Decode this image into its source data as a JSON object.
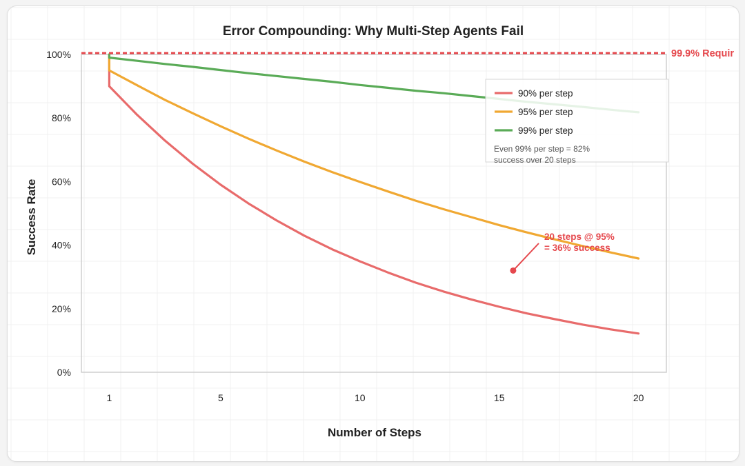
{
  "chart_data": {
    "type": "line",
    "title": "Error Compounding: Why Multi-Step Agents Fail",
    "xlabel": "Number of Steps",
    "ylabel": "Success Rate",
    "xlim": [
      0,
      21
    ],
    "ylim": [
      0,
      100
    ],
    "x_ticks": [
      1,
      5,
      10,
      15,
      20
    ],
    "y_ticks": [
      0,
      20,
      40,
      60,
      80,
      100
    ],
    "y_tick_labels": [
      "0%",
      "20%",
      "40%",
      "60%",
      "80%",
      "100%"
    ],
    "grid": true,
    "legend_position": "top-right",
    "x": [
      1,
      2,
      3,
      4,
      5,
      6,
      7,
      8,
      9,
      10,
      11,
      12,
      13,
      14,
      15,
      16,
      17,
      18,
      19,
      20
    ],
    "series": [
      {
        "name": "90% per step",
        "color": "#e86b6b",
        "values": [
          90,
          81,
          72.9,
          65.6,
          59.0,
          53.1,
          47.8,
          43.0,
          38.7,
          34.9,
          31.4,
          28.2,
          25.4,
          22.9,
          20.6,
          18.5,
          16.7,
          15.0,
          13.5,
          12.2
        ]
      },
      {
        "name": "95% per step",
        "color": "#f0a832",
        "values": [
          95,
          90.3,
          85.7,
          81.5,
          77.4,
          73.5,
          69.8,
          66.3,
          63.0,
          59.9,
          56.9,
          54.0,
          51.3,
          48.8,
          46.3,
          44.0,
          41.8,
          39.7,
          37.7,
          35.8
        ]
      },
      {
        "name": "99% per step",
        "color": "#5aab57",
        "values": [
          99,
          98.0,
          97.0,
          96.1,
          95.1,
          94.1,
          93.2,
          92.3,
          91.4,
          90.4,
          89.5,
          88.6,
          87.8,
          86.9,
          86.0,
          85.1,
          84.3,
          83.5,
          82.6,
          81.8
        ]
      }
    ],
    "reference_line": {
      "label": "99.9% Requir",
      "y": 100,
      "color": "#e5484d"
    },
    "legend_note": [
      "Even 99% per step = 82%",
      "success over 20 steps"
    ],
    "annotation": {
      "lines": [
        "20 steps @ 95%",
        "= 36% success"
      ],
      "point": {
        "x": 15.5,
        "y": 32
      },
      "color": "#e5484d"
    }
  }
}
